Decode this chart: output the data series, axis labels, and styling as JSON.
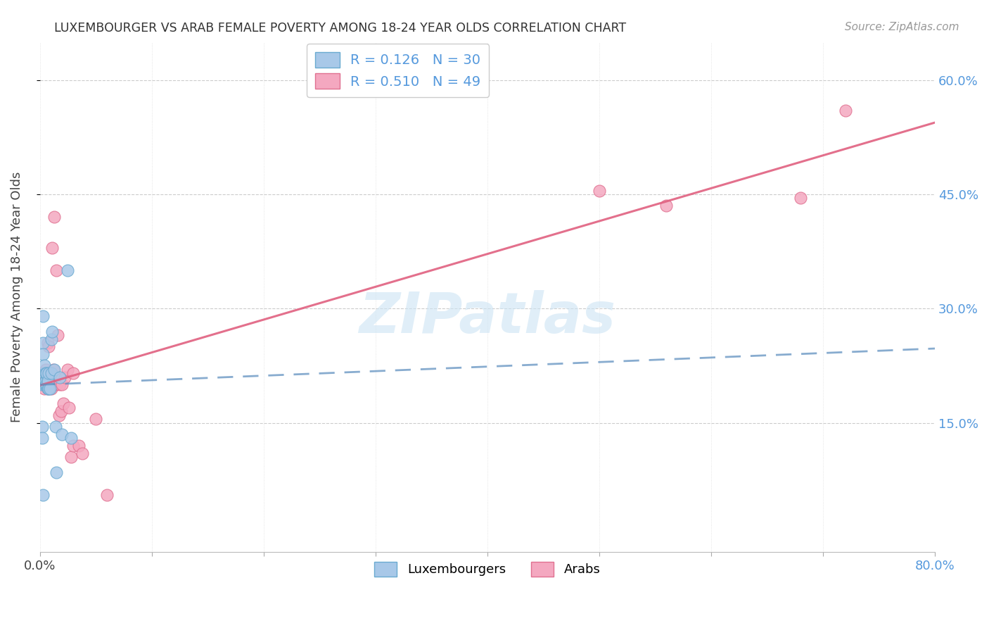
{
  "title": "LUXEMBOURGER VS ARAB FEMALE POVERTY AMONG 18-24 YEAR OLDS CORRELATION CHART",
  "source": "Source: ZipAtlas.com",
  "ylabel": "Female Poverty Among 18-24 Year Olds",
  "xlim": [
    0.0,
    0.8
  ],
  "ylim": [
    -0.02,
    0.65
  ],
  "xticks": [
    0.0,
    0.1,
    0.2,
    0.3,
    0.4,
    0.5,
    0.6,
    0.7,
    0.8
  ],
  "xticklabels_left": "0.0%",
  "xticklabels_right": "80.0%",
  "ytick_positions": [
    0.15,
    0.3,
    0.45,
    0.6
  ],
  "ytick_labels": [
    "15.0%",
    "30.0%",
    "45.0%",
    "60.0%"
  ],
  "lux_color": "#a8c8e8",
  "arab_color": "#f4a8c0",
  "lux_edge_color": "#6aaad0",
  "arab_edge_color": "#e07090",
  "lux_line_color": "#6090c0",
  "arab_line_color": "#e06080",
  "watermark": "ZIPatlas",
  "lux_R": 0.126,
  "arab_R": 0.51,
  "lux_N": 30,
  "arab_N": 49,
  "lux_x": [
    0.001,
    0.002,
    0.002,
    0.003,
    0.003,
    0.003,
    0.004,
    0.004,
    0.004,
    0.005,
    0.005,
    0.005,
    0.006,
    0.006,
    0.007,
    0.007,
    0.008,
    0.008,
    0.009,
    0.01,
    0.01,
    0.011,
    0.013,
    0.014,
    0.015,
    0.018,
    0.02,
    0.025,
    0.028,
    0.003
  ],
  "lux_y": [
    0.2,
    0.145,
    0.13,
    0.29,
    0.255,
    0.24,
    0.2,
    0.215,
    0.225,
    0.2,
    0.205,
    0.215,
    0.2,
    0.215,
    0.195,
    0.205,
    0.195,
    0.215,
    0.195,
    0.215,
    0.26,
    0.27,
    0.22,
    0.145,
    0.085,
    0.21,
    0.135,
    0.35,
    0.13,
    0.055
  ],
  "arab_x": [
    0.001,
    0.002,
    0.002,
    0.003,
    0.003,
    0.004,
    0.004,
    0.005,
    0.005,
    0.005,
    0.006,
    0.006,
    0.007,
    0.007,
    0.008,
    0.008,
    0.008,
    0.009,
    0.01,
    0.01,
    0.011,
    0.011,
    0.012,
    0.012,
    0.013,
    0.013,
    0.014,
    0.015,
    0.015,
    0.016,
    0.017,
    0.018,
    0.019,
    0.02,
    0.021,
    0.022,
    0.025,
    0.026,
    0.028,
    0.03,
    0.03,
    0.035,
    0.038,
    0.05,
    0.06,
    0.5,
    0.56,
    0.68,
    0.72
  ],
  "arab_y": [
    0.2,
    0.2,
    0.215,
    0.2,
    0.215,
    0.195,
    0.21,
    0.2,
    0.21,
    0.22,
    0.2,
    0.21,
    0.195,
    0.255,
    0.2,
    0.21,
    0.25,
    0.2,
    0.195,
    0.215,
    0.2,
    0.38,
    0.2,
    0.22,
    0.2,
    0.42,
    0.21,
    0.2,
    0.35,
    0.265,
    0.16,
    0.2,
    0.165,
    0.2,
    0.175,
    0.21,
    0.22,
    0.17,
    0.105,
    0.12,
    0.215,
    0.12,
    0.11,
    0.155,
    0.055,
    0.455,
    0.435,
    0.445,
    0.56
  ]
}
